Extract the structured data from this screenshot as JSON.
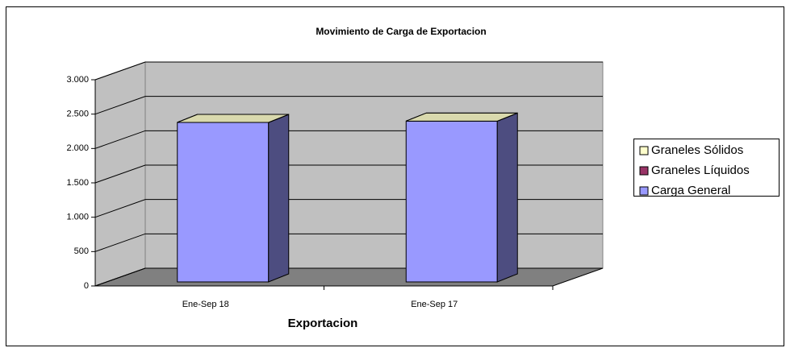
{
  "chart_data": {
    "type": "bar3d_stacked",
    "title": "Movimiento de Carga de Exportacion",
    "x_label": "Exportacion",
    "categories": [
      "Ene-Sep 18",
      "Ene-Sep 17"
    ],
    "series": [
      {
        "name": "Carga General",
        "color": "#9999ff",
        "values": [
          2320,
          2340
        ]
      },
      {
        "name": "Graneles Líquidos",
        "color": "#993366",
        "values": [
          0,
          0
        ]
      },
      {
        "name": "Graneles Sólidos",
        "color": "#ffffcc",
        "values": [
          0,
          0
        ]
      }
    ],
    "ylim": [
      0,
      3000
    ],
    "yticks": [
      0,
      500,
      {
        "value": 1000,
        "label": "1.000"
      },
      {
        "value": 1500,
        "label": "1.500"
      },
      {
        "value": 2000,
        "label": "2.000"
      },
      {
        "value": 2500,
        "label": "2.500"
      },
      {
        "value": 3000,
        "label": "3.000"
      }
    ],
    "grid": true,
    "legend": "right"
  }
}
